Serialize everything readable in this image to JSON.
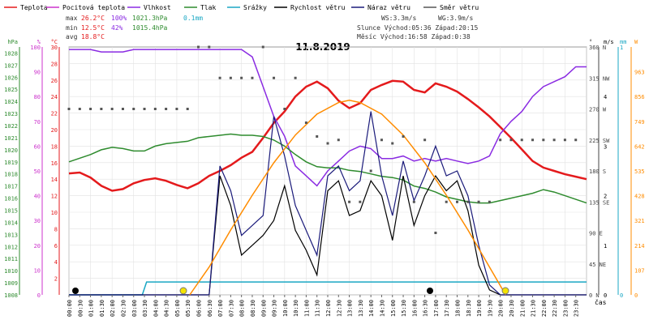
{
  "legend": [
    {
      "label": "Teplota",
      "color": "#e41a1c"
    },
    {
      "label": "Pocitová teplota",
      "color": "#cc33cc"
    },
    {
      "label": "Vlhkost",
      "color": "#8a2be2"
    },
    {
      "label": "Tlak",
      "color": "#2e8b2e"
    },
    {
      "label": "Srážky",
      "color": "#1aa7c4"
    },
    {
      "label": "Rychlost větru",
      "color": "#000000"
    },
    {
      "label": "Náraz větru",
      "color": "#1a1a7a"
    },
    {
      "label": "Směr větru",
      "color": "#555555"
    }
  ],
  "stats": {
    "max_label": "max",
    "max_temp": "26.2°C",
    "max_hum": "100%",
    "max_press": "1021.3hPa",
    "rain": "0.1mm",
    "min_label": "min",
    "min_temp": "12.5°C",
    "min_hum": "42%",
    "min_press": "1015.4hPa",
    "avg_label": "avg",
    "avg_temp": "18.8°C",
    "ws": "WS:3.3m/s",
    "wg": "WG:3.9m/s",
    "sun": "Slunce Východ:05:36  Západ:20:15",
    "moon": "Měsíc  Východ:16:58  Západ:0:38"
  },
  "chart_data": {
    "type": "line",
    "title": "11.8.2019",
    "xlabel": "čas",
    "x_ticks": [
      "00:00",
      "00:30",
      "01:00",
      "01:30",
      "02:00",
      "02:30",
      "03:00",
      "03:30",
      "04:00",
      "04:30",
      "05:00",
      "05:30",
      "06:00",
      "06:30",
      "07:00",
      "07:30",
      "08:00",
      "08:30",
      "09:00",
      "09:30",
      "10:00",
      "10:30",
      "11:00",
      "11:30",
      "12:00",
      "12:30",
      "13:00",
      "13:30",
      "14:00",
      "14:30",
      "15:00",
      "15:30",
      "16:00",
      "16:30",
      "17:00",
      "17:30",
      "18:00",
      "18:30",
      "19:00",
      "19:30",
      "20:00",
      "20:30",
      "21:00",
      "21:30",
      "22:00",
      "22:30",
      "23:00",
      "23:30"
    ],
    "axes": {
      "pressure": {
        "label": "hPa",
        "ticks": [
          "1028",
          "1027",
          "1026",
          "1025",
          "1024",
          "1023",
          "1022",
          "1021",
          "1020",
          "1019",
          "1018",
          "1017",
          "1016",
          "1015",
          "1014",
          "1013",
          "1012",
          "1011",
          "1010",
          "1009",
          "1008"
        ],
        "range": [
          1008,
          1028.5
        ]
      },
      "humidity": {
        "label": "%",
        "ticks": [
          "100",
          "90",
          "80",
          "70",
          "60",
          "50",
          "40",
          "30",
          "20",
          "10",
          "0"
        ],
        "range": [
          0,
          100
        ]
      },
      "temperature": {
        "label": "°C",
        "ticks": [
          "30",
          "28",
          "26",
          "24",
          "22",
          "20",
          "18",
          "16",
          "14",
          "12",
          "10",
          "8",
          "6",
          "4",
          "2"
        ],
        "range": [
          0,
          30
        ]
      },
      "direction": {
        "label": "°",
        "ticks": [
          "360 N",
          "315 NW",
          "270 W",
          "225 SW",
          "180 S",
          "135 SE",
          "90 E",
          "45 NE",
          "0 N"
        ],
        "range": [
          0,
          360
        ]
      },
      "wind": {
        "label": "m/s",
        "ticks": [
          "4",
          "3",
          "2",
          "1",
          "0"
        ],
        "range": [
          0,
          5
        ]
      },
      "rain": {
        "label": "mm",
        "ticks": [
          "1",
          "0"
        ],
        "range": [
          0,
          1
        ]
      },
      "solar": {
        "label": "W",
        "ticks": [
          "963",
          "856",
          "749",
          "642",
          "535",
          "428",
          "321",
          "214",
          "107",
          "0"
        ],
        "range": [
          0,
          1070
        ]
      }
    },
    "series": [
      {
        "name": "Teplota",
        "unit": "°C",
        "color": "#e41a1c",
        "x": [
          0,
          0.5,
          1,
          1.5,
          2,
          2.5,
          3,
          3.5,
          4,
          4.5,
          5,
          5.5,
          6,
          6.5,
          7,
          7.5,
          8,
          8.5,
          9,
          9.5,
          10,
          10.5,
          11,
          11.5,
          12,
          12.5,
          13,
          13.5,
          14,
          14.5,
          15,
          15.5,
          16,
          16.5,
          17,
          17.5,
          18,
          18.5,
          19,
          19.5,
          20,
          20.5,
          21,
          21.5,
          22,
          22.5,
          23,
          23.5,
          24
        ],
        "y": [
          14.7,
          14.8,
          14.2,
          13.2,
          12.6,
          12.8,
          13.5,
          13.9,
          14.1,
          13.8,
          13.3,
          12.9,
          13.5,
          14.4,
          15.0,
          15.7,
          16.6,
          17.3,
          19.0,
          20.8,
          22.2,
          24.0,
          25.2,
          25.8,
          25.0,
          23.5,
          22.6,
          23.2,
          24.8,
          25.4,
          25.9,
          25.8,
          24.8,
          24.5,
          25.6,
          25.2,
          24.6,
          23.7,
          22.7,
          21.6,
          20.3,
          19.0,
          17.6,
          16.2,
          15.4,
          15.0,
          14.6,
          14.3,
          14.0
        ]
      },
      {
        "name": "Vlhkost",
        "unit": "%",
        "color": "#8a2be2",
        "x": [
          0,
          0.5,
          1,
          1.5,
          2,
          2.5,
          3,
          3.5,
          4,
          4.5,
          5,
          5.5,
          6,
          6.5,
          7,
          7.5,
          8,
          8.5,
          9,
          9.5,
          10,
          10.5,
          11,
          11.5,
          12,
          12.5,
          13,
          13.5,
          14,
          14.5,
          15,
          15.5,
          16,
          16.5,
          17,
          17.5,
          18,
          18.5,
          19,
          19.5,
          20,
          20.5,
          21,
          21.5,
          22,
          22.5,
          23,
          23.5,
          24
        ],
        "y": [
          99,
          99,
          99,
          98,
          98,
          98,
          99,
          99,
          99,
          99,
          99,
          99,
          99,
          99,
          99,
          99,
          99,
          96,
          84,
          72,
          64,
          52,
          48,
          44,
          50,
          54,
          58,
          60,
          59,
          55,
          55,
          56,
          54,
          55,
          54,
          55,
          54,
          53,
          54,
          56,
          65,
          70,
          74,
          80,
          84,
          86,
          88,
          92,
          92
        ]
      },
      {
        "name": "Tlak",
        "unit": "hPa",
        "color": "#2e8b2e",
        "x": [
          0,
          0.5,
          1,
          1.5,
          2,
          2.5,
          3,
          3.5,
          4,
          4.5,
          5,
          5.5,
          6,
          6.5,
          7,
          7.5,
          8,
          8.5,
          9,
          9.5,
          10,
          10.5,
          11,
          11.5,
          12,
          12.5,
          13,
          13.5,
          14,
          14.5,
          15,
          15.5,
          16,
          16.5,
          17,
          17.5,
          18,
          18.5,
          19,
          19.5,
          20,
          20.5,
          21,
          21.5,
          22,
          22.5,
          23,
          23.5,
          24
        ],
        "y": [
          1019.0,
          1019.3,
          1019.6,
          1020.0,
          1020.2,
          1020.1,
          1019.9,
          1019.9,
          1020.3,
          1020.5,
          1020.6,
          1020.7,
          1021.0,
          1021.1,
          1021.2,
          1021.3,
          1021.2,
          1021.2,
          1021.1,
          1020.8,
          1020.3,
          1019.6,
          1019.0,
          1018.6,
          1018.5,
          1018.5,
          1018.3,
          1018.2,
          1018.0,
          1017.8,
          1017.7,
          1017.5,
          1017.0,
          1016.8,
          1016.5,
          1016.1,
          1015.9,
          1015.7,
          1015.6,
          1015.6,
          1015.8,
          1016.0,
          1016.2,
          1016.4,
          1016.7,
          1016.5,
          1016.2,
          1015.9,
          1015.6
        ]
      },
      {
        "name": "Srážky",
        "unit": "mm",
        "color": "#1aa7c4",
        "x": [
          0,
          3.4,
          3.6,
          24
        ],
        "y": [
          0,
          0,
          0.1,
          0.1
        ]
      },
      {
        "name": "Rychlost větru",
        "unit": "m/s",
        "color": "#000000",
        "x": [
          0,
          0.5,
          1,
          1.5,
          2,
          2.5,
          3,
          3.5,
          4,
          4.5,
          5,
          5.5,
          6,
          6.5,
          7,
          7.5,
          8,
          8.5,
          9,
          9.5,
          10,
          10.5,
          11,
          11.5,
          12,
          12.5,
          13,
          13.5,
          14,
          14.5,
          15,
          15.5,
          16,
          16.5,
          17,
          17.5,
          18,
          18.5,
          19,
          19.5,
          20,
          20.5,
          21,
          21.5,
          22,
          22.5,
          23,
          23.5,
          24
        ],
        "y": [
          0,
          0,
          0,
          0,
          0,
          0,
          0,
          0,
          0,
          0,
          0,
          0,
          0,
          0,
          2.4,
          1.8,
          0.8,
          1.0,
          1.2,
          1.5,
          2.2,
          1.3,
          0.9,
          0.4,
          2.1,
          2.3,
          1.6,
          1.7,
          2.3,
          2.0,
          1.1,
          2.4,
          1.4,
          2.0,
          2.4,
          2.1,
          2.3,
          1.7,
          0.6,
          0.1,
          0,
          0,
          0,
          0,
          0,
          0,
          0,
          0,
          0
        ]
      },
      {
        "name": "Náraz větru",
        "unit": "m/s",
        "color": "#1a1a7a",
        "x": [
          0,
          0.5,
          1,
          1.5,
          2,
          2.5,
          3,
          3.5,
          4,
          4.5,
          5,
          5.5,
          6,
          6.5,
          7,
          7.5,
          8,
          8.5,
          9,
          9.5,
          10,
          10.5,
          11,
          11.5,
          12,
          12.5,
          13,
          13.5,
          14,
          14.5,
          15,
          15.5,
          16,
          16.5,
          17,
          17.5,
          18,
          18.5,
          19,
          19.5,
          20,
          20.5,
          21,
          21.5,
          22,
          22.5,
          23,
          23.5,
          24
        ],
        "y": [
          0,
          0,
          0,
          0,
          0,
          0,
          0,
          0,
          0,
          0,
          0,
          0,
          0,
          0,
          2.6,
          2.1,
          1.2,
          1.4,
          1.6,
          3.6,
          2.8,
          1.8,
          1.3,
          0.8,
          2.4,
          2.6,
          2.1,
          2.3,
          3.7,
          2.4,
          1.6,
          2.7,
          1.9,
          2.4,
          3.0,
          2.4,
          2.5,
          2.0,
          1.0,
          0.2,
          0,
          0,
          0,
          0,
          0,
          0,
          0,
          0,
          0
        ]
      },
      {
        "name": "Slunce",
        "unit": "W",
        "color": "#ff8c00",
        "x": [
          5.6,
          6.5,
          7.5,
          8.5,
          9.5,
          10.5,
          11.5,
          12.5,
          13.0,
          13.5,
          14.5,
          15.5,
          16.5,
          17.5,
          18.5,
          19.5,
          20.25
        ],
        "y": [
          0,
          120,
          280,
          430,
          570,
          690,
          780,
          830,
          840,
          830,
          780,
          690,
          570,
          430,
          280,
          120,
          0
        ]
      },
      {
        "name": "Směr větru",
        "unit": "°",
        "color": "#555555",
        "x": [
          0,
          0.5,
          1,
          1.5,
          2,
          2.5,
          3,
          3.5,
          4,
          4.5,
          5,
          5.5,
          6,
          6.5,
          7,
          7.5,
          8,
          8.5,
          9,
          9.5,
          10,
          10.5,
          11,
          11.5,
          12,
          12.5,
          13,
          13.5,
          14,
          14.5,
          15,
          15.5,
          16,
          16.5,
          17,
          17.5,
          18,
          18.5,
          19,
          19.5,
          20,
          20.5,
          21,
          21.5,
          22,
          22.5,
          23,
          23.5
        ],
        "y": [
          270,
          270,
          270,
          270,
          270,
          270,
          270,
          270,
          270,
          270,
          270,
          270,
          360,
          360,
          315,
          315,
          315,
          315,
          360,
          315,
          270,
          315,
          250,
          230,
          220,
          225,
          135,
          135,
          180,
          225,
          220,
          230,
          135,
          225,
          90,
          135,
          135,
          135,
          135,
          135,
          225,
          225,
          225,
          225,
          225,
          225,
          225,
          225
        ]
      }
    ]
  }
}
